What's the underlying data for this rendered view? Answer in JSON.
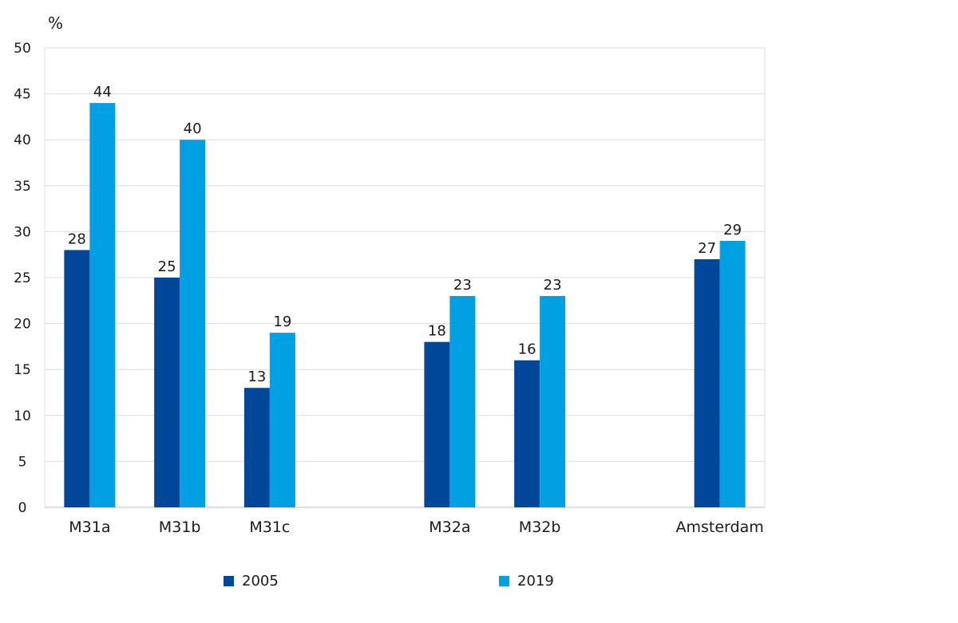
{
  "chart_data": {
    "type": "bar",
    "unit_label": "%",
    "categories": [
      "M31a",
      "M31b",
      "M31c",
      "",
      "M32a",
      "M32b",
      "",
      "Amsterdam"
    ],
    "series": [
      {
        "name": "2005",
        "color": "#00479a",
        "values": [
          28,
          25,
          13,
          null,
          18,
          16,
          null,
          27
        ]
      },
      {
        "name": "2019",
        "color": "#00a0e3",
        "values": [
          44,
          40,
          19,
          null,
          23,
          23,
          null,
          29
        ]
      }
    ],
    "ylim": [
      0,
      50
    ],
    "yticks": [
      0,
      5,
      10,
      15,
      20,
      25,
      30,
      35,
      40,
      45,
      50
    ],
    "grid": true,
    "legend_position": "bottom"
  }
}
